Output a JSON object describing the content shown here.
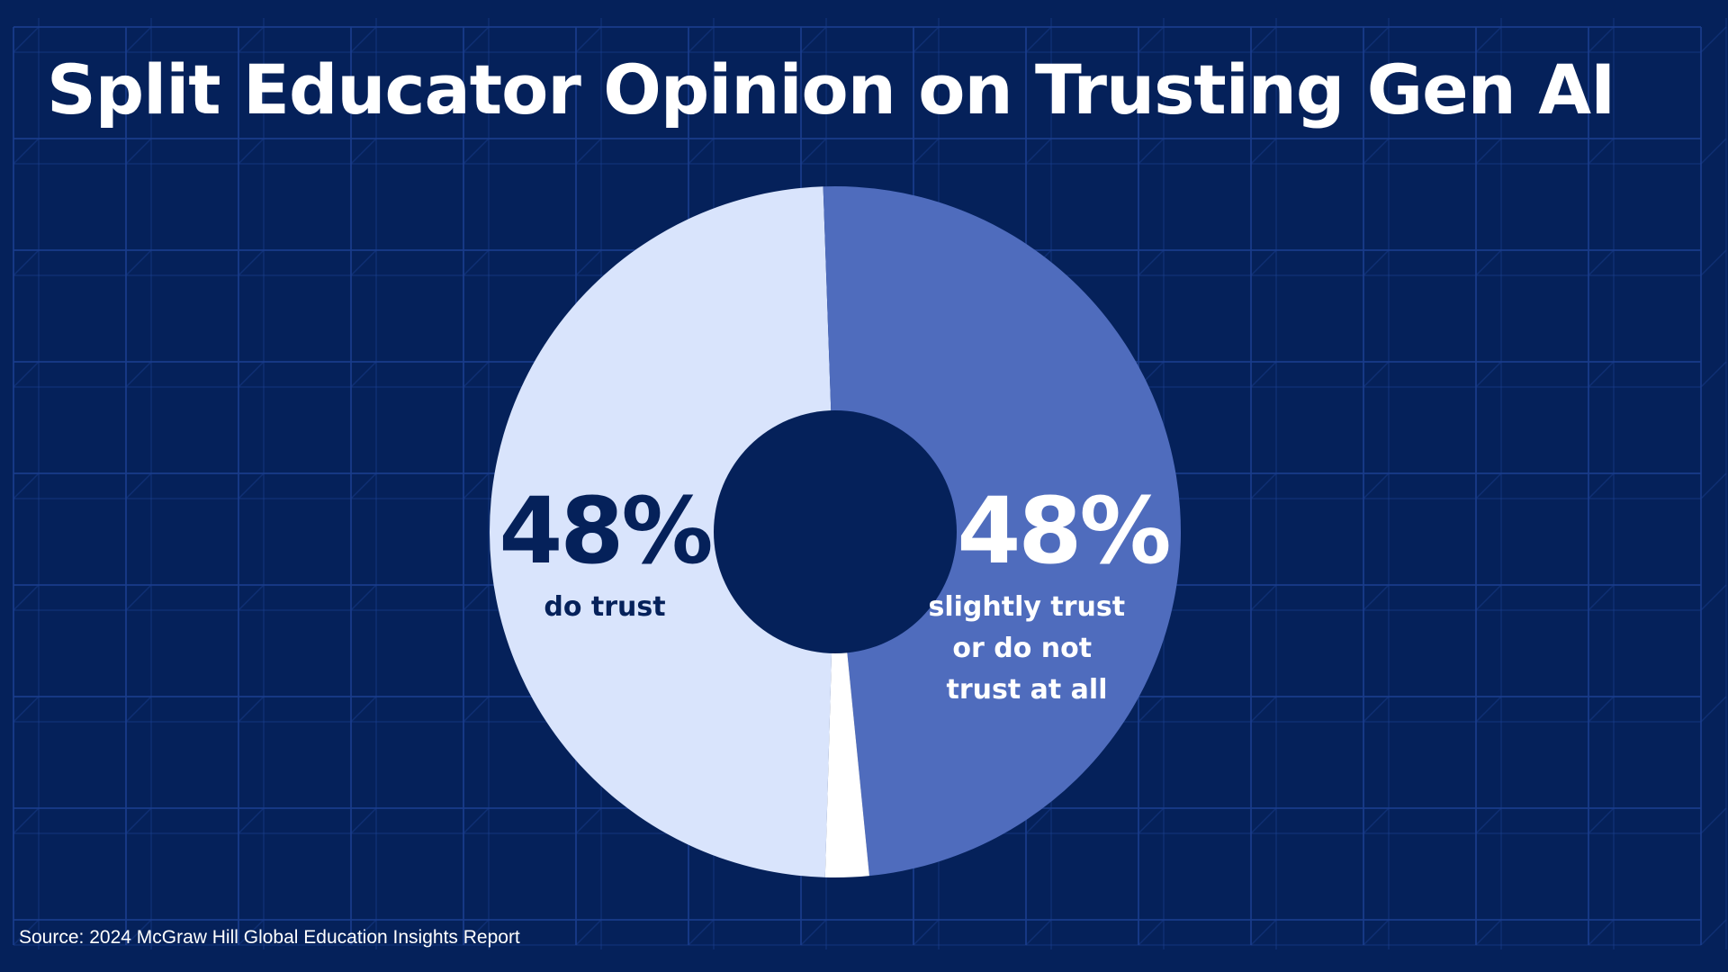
{
  "title": "Split Educator Opinion on Trusting Gen AI",
  "source": "Source: 2024 McGraw Hill Global Education Insights Report",
  "colors": {
    "background": "#05215a",
    "grid_line": "#1a3d8c",
    "do_trust": "#d9e4fc",
    "slightly_or_not": "#4f6cbd",
    "other": "#ffffff",
    "label_dark": "#05215a",
    "label_light": "#ffffff"
  },
  "chart_data": {
    "type": "pie",
    "style": "donut",
    "slices": [
      {
        "label": "do trust",
        "value": 48,
        "value_label": "48%",
        "color": "#d9e4fc",
        "caption_lines": [
          "do trust"
        ]
      },
      {
        "label": "slightly trust or do not trust at all",
        "value": 48,
        "value_label": "48%",
        "color": "#4f6cbd",
        "caption_lines": [
          "slightly trust",
          "or do not",
          "trust at all"
        ]
      },
      {
        "value": 2,
        "color": "#ffffff"
      }
    ]
  }
}
